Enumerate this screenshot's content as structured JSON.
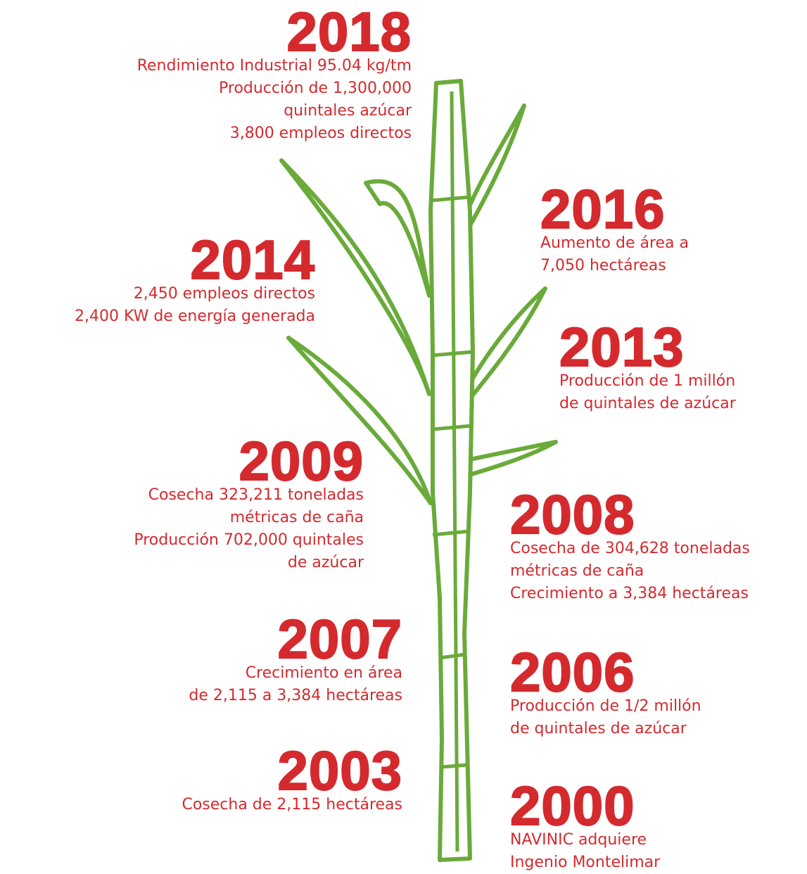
{
  "events": [
    {
      "year": "2018",
      "lines": [
        "Rendimiento Industrial 95.04 kg/tm",
        "Producción de 1,300,000",
        "quintales azúcar",
        "3,800 empleos directos"
      ]
    },
    {
      "year": "2016",
      "lines": [
        "Aumento de área a",
        "7,050 hectáreas"
      ]
    },
    {
      "year": "2014",
      "lines": [
        "2,450 empleos directos",
        "2,400 KW de energía generada"
      ]
    },
    {
      "year": "2013",
      "lines": [
        "Producción de 1 millón",
        "de quintales de azúcar"
      ]
    },
    {
      "year": "2009",
      "lines": [
        "Cosecha 323,211 toneladas",
        "métricas de caña",
        "Producción 702,000 quintales",
        "de azúcar"
      ]
    },
    {
      "year": "2008",
      "lines": [
        "Cosecha de 304,628 toneladas",
        "métricas de caña",
        "Crecimiento a 3,384 hectáreas"
      ]
    },
    {
      "year": "2007",
      "lines": [
        "Crecimiento en área",
        "de 2,115 a 3,384 hectáreas"
      ]
    },
    {
      "year": "2006",
      "lines": [
        "Producción de 1/2 millón",
        "de quintales de azúcar"
      ]
    },
    {
      "year": "2003",
      "lines": [
        "Cosecha de 2,115 hectáreas"
      ]
    },
    {
      "year": "2000",
      "lines": [
        "NAVINIC adquiere",
        "Ingenio Montelimar"
      ]
    }
  ]
}
